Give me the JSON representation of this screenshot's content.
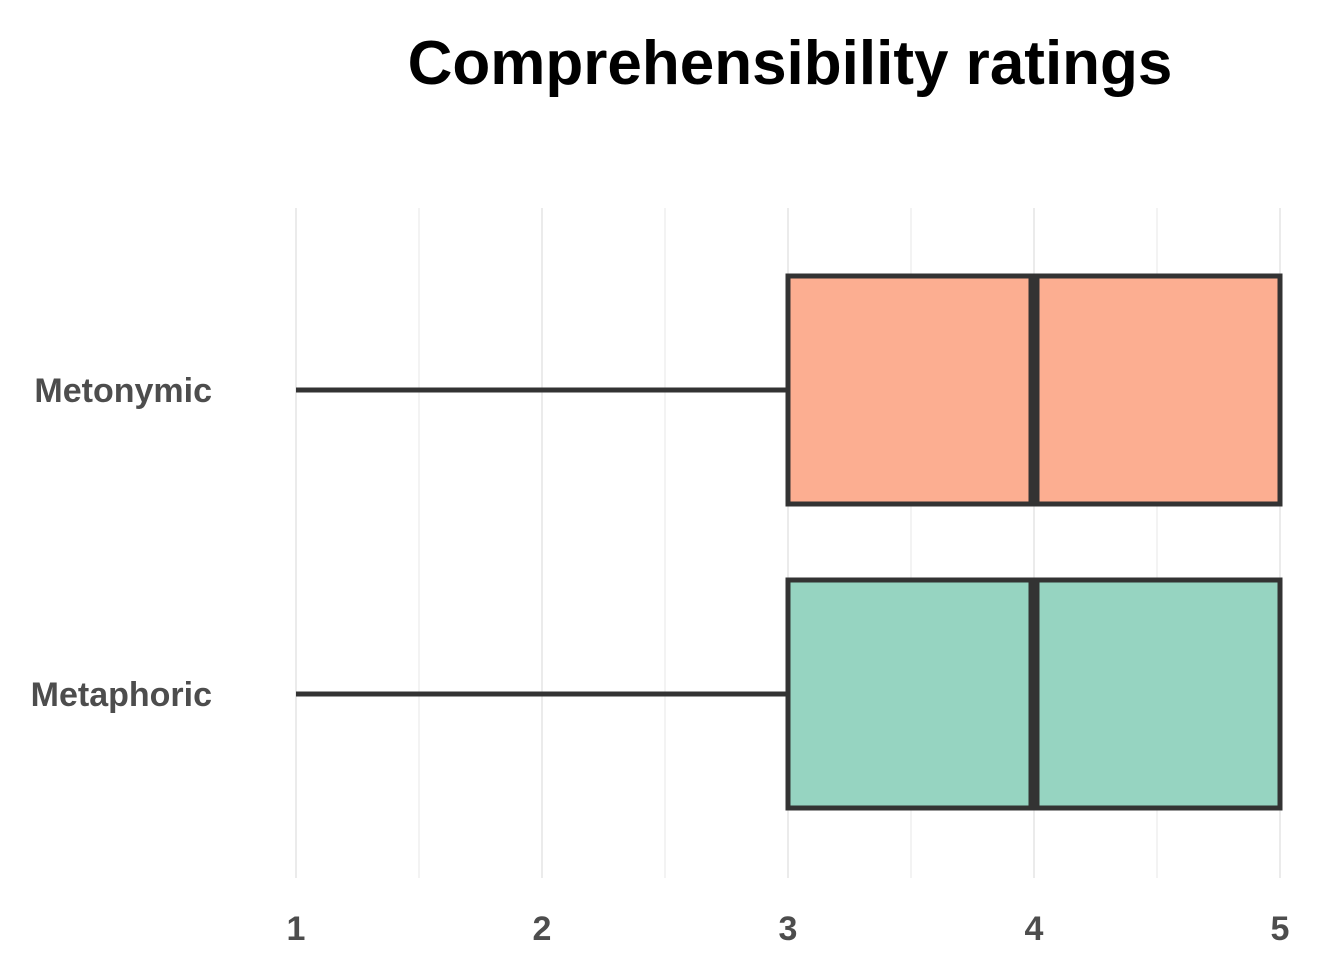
{
  "chart_data": {
    "type": "boxplot",
    "orientation": "horizontal",
    "title": "Comprehensibility ratings",
    "xlabel": "",
    "ylabel": "",
    "xlim": [
      1,
      5
    ],
    "x_ticks": [
      1,
      2,
      3,
      4,
      5
    ],
    "grid": "vertical",
    "legend": "none",
    "categories": [
      "Metonymic",
      "Metaphoric"
    ],
    "boxes": [
      {
        "category": "Metonymic",
        "min": 1,
        "q1": 3,
        "median": 4,
        "q3": 5,
        "max": 5,
        "color": "#fcae91"
      },
      {
        "category": "Metaphoric",
        "min": 1,
        "q1": 3,
        "median": 4,
        "q3": 5,
        "max": 5,
        "color": "#96d4c1"
      }
    ],
    "outline_color": "#333333",
    "grid_color": "#ebebeb"
  }
}
